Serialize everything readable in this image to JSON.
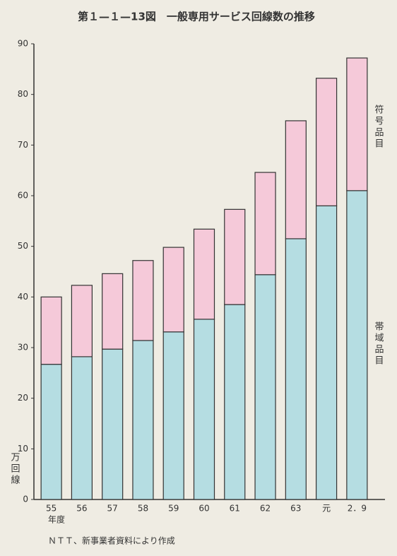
{
  "chart_data": {
    "type": "stacked_bar",
    "title": "第１—１—13図　一般専用サービス回線数の推移",
    "y_unit": "万回線",
    "x_label": "年度",
    "source": "ＮＴＴ、新事業者資料により作成",
    "categories": [
      "55",
      "56",
      "57",
      "58",
      "59",
      "60",
      "61",
      "62",
      "63",
      "元",
      "2．9"
    ],
    "series": [
      {
        "name": "帯域品目",
        "color": "#b5dde2",
        "values": [
          26.7,
          28.2,
          29.7,
          31.4,
          33.1,
          35.6,
          38.5,
          44.4,
          51.5,
          58.0,
          61.0
        ]
      },
      {
        "name": "符号品目",
        "color": "#f5c9d9",
        "values": [
          13.3,
          14.1,
          14.9,
          15.8,
          16.7,
          17.8,
          18.8,
          20.2,
          23.3,
          25.2,
          26.2
        ]
      }
    ],
    "ylim": [
      0,
      90
    ],
    "yticks": [
      0,
      10,
      20,
      30,
      40,
      50,
      60,
      70,
      80,
      90
    ]
  }
}
